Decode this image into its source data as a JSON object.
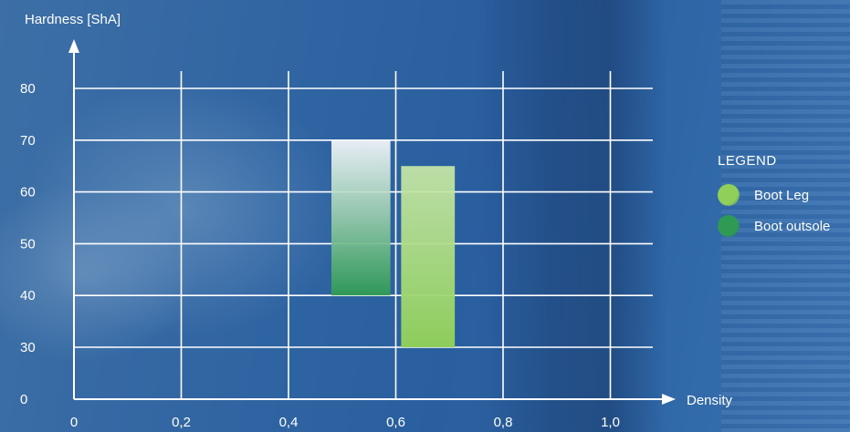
{
  "chart_data": {
    "type": "bar",
    "title": "",
    "xlabel": "Density",
    "ylabel": "Hardness [ShA]",
    "x_ticks": [
      "0",
      "0,2",
      "0,4",
      "0,6",
      "0,8",
      "1,0"
    ],
    "x_tick_values": [
      0,
      0.2,
      0.4,
      0.6,
      0.8,
      1.0
    ],
    "y_ticks": [
      "0",
      "30",
      "40",
      "50",
      "60",
      "70",
      "80"
    ],
    "y_tick_values": [
      0,
      30,
      40,
      50,
      60,
      70,
      80
    ],
    "grid": true,
    "legend_position": "right",
    "series": [
      {
        "name": "Boot Leg",
        "color": "#8fcf5a",
        "density_range": [
          0.61,
          0.71
        ],
        "hardness_range": [
          30,
          65
        ]
      },
      {
        "name": "Boot outsole",
        "color": "#2f9a54",
        "density_range": [
          0.48,
          0.59
        ],
        "hardness_range": [
          40,
          70
        ]
      }
    ]
  },
  "legend": {
    "title": "LEGEND",
    "items": [
      {
        "label": "Boot Leg",
        "color": "#8fcf5a"
      },
      {
        "label": "Boot outsole",
        "color": "#2f9a54"
      }
    ]
  }
}
